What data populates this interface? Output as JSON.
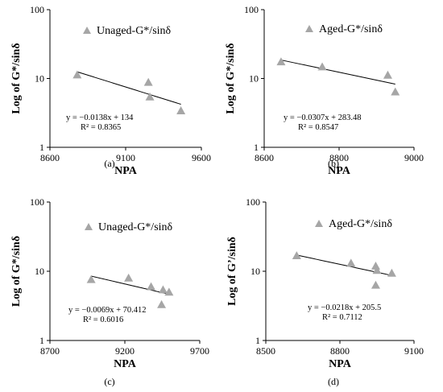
{
  "chart_data": [
    {
      "type": "scatter",
      "panel_label": "(a)",
      "xlabel": "NPA",
      "ylabel": "Log of G*/sinδ",
      "xlim": [
        8600,
        9600
      ],
      "xticks": [
        "8600",
        "9100",
        "9600"
      ],
      "ylim": [
        1,
        100
      ],
      "yscale": "log",
      "yticks": [
        "1",
        "10",
        "100"
      ],
      "legend": "top-right",
      "series": [
        {
          "name": "Unaged-G*/sinδ",
          "points": [
            {
              "x": 8780,
              "y": 11.3
            },
            {
              "x": 9250,
              "y": 8.8
            },
            {
              "x": 9260,
              "y": 5.4
            },
            {
              "x": 9465,
              "y": 3.4
            }
          ]
        }
      ],
      "trendline": {
        "type": "exponential",
        "a": 134,
        "b": -0.0138,
        "x_range": [
          8780,
          9465
        ]
      },
      "equation": "y = −0.0138x + 134",
      "r2": "R² = 0.8365"
    },
    {
      "type": "scatter",
      "panel_label": "(b)",
      "xlabel": "NPA",
      "ylabel": "Log of G*/sinδ",
      "xlim": [
        8600,
        9000
      ],
      "xticks": [
        "8600",
        "8800",
        "9000"
      ],
      "ylim": [
        1,
        100
      ],
      "yscale": "log",
      "yticks": [
        "1",
        "10",
        "100"
      ],
      "legend": "top-right",
      "series": [
        {
          "name": "Aged-G*/sinδ",
          "points": [
            {
              "x": 8645,
              "y": 17.5
            },
            {
              "x": 8755,
              "y": 14.8
            },
            {
              "x": 8930,
              "y": 11.2
            },
            {
              "x": 8950,
              "y": 6.4
            }
          ]
        }
      ],
      "trendline": {
        "type": "exponential",
        "a": 283.48,
        "b": -0.0307,
        "x_range": [
          8645,
          8950
        ]
      },
      "equation": "y = −0.0307x + 283.48",
      "r2": "R² = 0.8547"
    },
    {
      "type": "scatter",
      "panel_label": "(c)",
      "xlabel": "NPA",
      "ylabel": "Log of G*/sinδ",
      "xlim": [
        8700,
        9700
      ],
      "xticks": [
        "8700",
        "9200",
        "9700"
      ],
      "ylim": [
        1,
        100
      ],
      "yscale": "log",
      "yticks": [
        "1",
        "10",
        "100"
      ],
      "legend": "top-right",
      "series": [
        {
          "name": "Unaged-G*/sinδ",
          "points": [
            {
              "x": 8975,
              "y": 7.6
            },
            {
              "x": 9225,
              "y": 8.0
            },
            {
              "x": 9375,
              "y": 6.0
            },
            {
              "x": 9455,
              "y": 5.4
            },
            {
              "x": 9495,
              "y": 5.0
            },
            {
              "x": 9445,
              "y": 3.3
            }
          ]
        }
      ],
      "trendline": {
        "type": "exponential",
        "a": 70.412,
        "b": -0.0069,
        "x_range": [
          8975,
          9495
        ]
      },
      "equation": "y = −0.0069x + 70.412",
      "r2": "R² = 0.6016"
    },
    {
      "type": "scatter",
      "panel_label": "(d)",
      "xlabel": "NPA",
      "ylabel": "Log of G’/sinδ",
      "xlim": [
        8500,
        9100
      ],
      "xticks": [
        "8500",
        "8800",
        "9100"
      ],
      "ylim": [
        1,
        100
      ],
      "yscale": "log",
      "yticks": [
        "1",
        "10",
        "100"
      ],
      "legend": "top-right",
      "series": [
        {
          "name": "Aged-G*/sinδ",
          "points": [
            {
              "x": 8625,
              "y": 16.8
            },
            {
              "x": 8845,
              "y": 13.1
            },
            {
              "x": 8945,
              "y": 11.9
            },
            {
              "x": 8950,
              "y": 10.3
            },
            {
              "x": 9010,
              "y": 9.4
            },
            {
              "x": 8945,
              "y": 6.3
            }
          ]
        }
      ],
      "trendline": {
        "type": "exponential",
        "a": 205.5,
        "b": -0.0218,
        "x_range": [
          8625,
          9010
        ]
      },
      "equation": "y = −0.0218x + 205.5",
      "r2": "R² = 0.7112"
    }
  ]
}
